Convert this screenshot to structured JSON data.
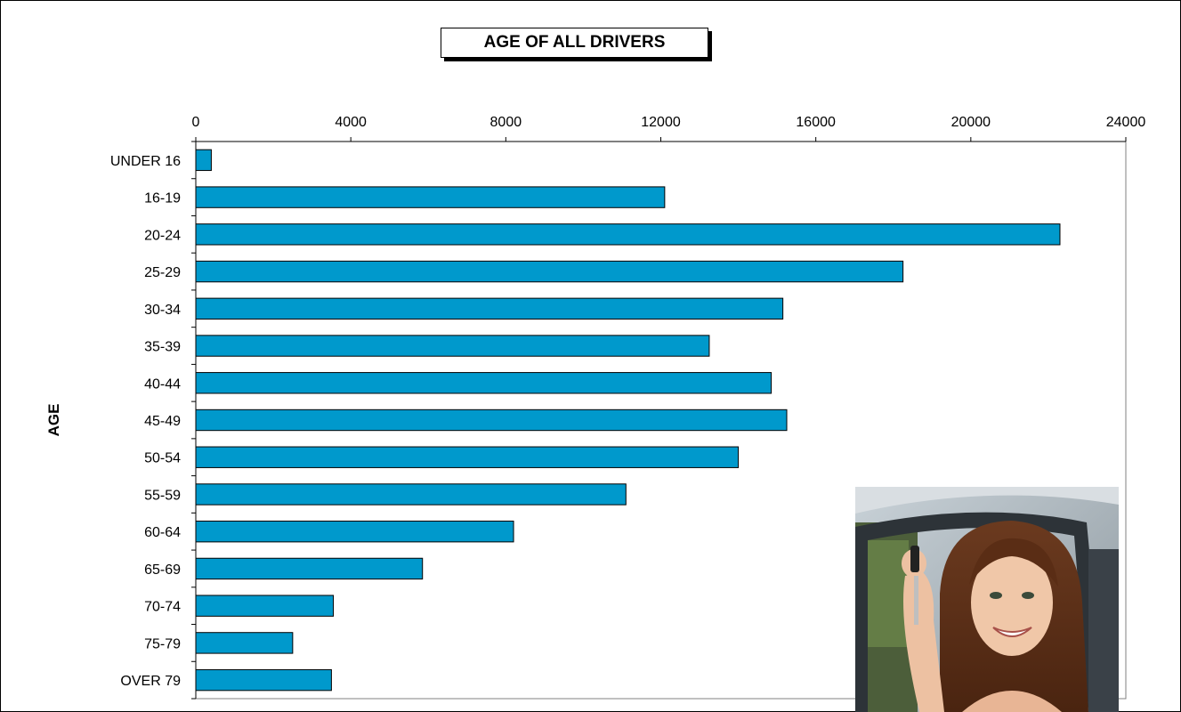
{
  "chart_data": {
    "type": "bar",
    "orientation": "horizontal",
    "title": "AGE OF ALL DRIVERS",
    "ylabel": "AGE",
    "xlabel": "",
    "xlim": [
      0,
      24000
    ],
    "xticks": [
      0,
      4000,
      8000,
      12000,
      16000,
      20000,
      24000
    ],
    "x_axis_position": "top",
    "grid": false,
    "categories": [
      "UNDER 16",
      "16-19",
      "20-24",
      "25-29",
      "30-34",
      "35-39",
      "40-44",
      "45-49",
      "50-54",
      "55-59",
      "60-64",
      "65-69",
      "70-74",
      "75-79",
      "OVER 79"
    ],
    "values": [
      400,
      12100,
      22300,
      18250,
      15150,
      13250,
      14850,
      15250,
      14000,
      11100,
      8200,
      5850,
      3550,
      2500,
      3500
    ],
    "bar_color": "#0099cc"
  },
  "photo": {
    "icon": "teen-driver-holding-car-keys-photo"
  }
}
